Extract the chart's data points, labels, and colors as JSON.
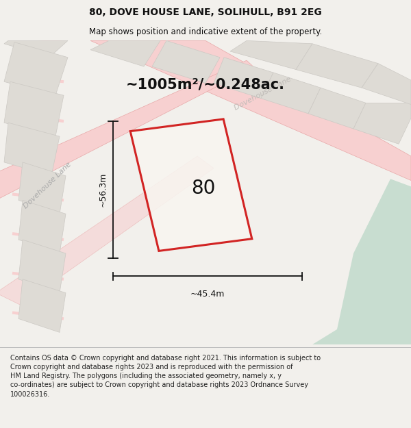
{
  "title": "80, DOVE HOUSE LANE, SOLIHULL, B91 2EG",
  "subtitle": "Map shows position and indicative extent of the property.",
  "footer": "Contains OS data © Crown copyright and database right 2021. This information is subject to\nCrown copyright and database rights 2023 and is reproduced with the permission of\nHM Land Registry. The polygons (including the associated geometry, namely x, y\nco-ordinates) are subject to Crown copyright and database rights 2023 Ordnance Survey\n100026316.",
  "area_label": "~1005m²/~0.248ac.",
  "width_label": "~45.4m",
  "height_label": "~56.3m",
  "plot_number": "80",
  "bg_color": "#f2f0ec",
  "map_bg": "#eeebe6",
  "road_color": "#f7d0d0",
  "road_outline": "#e8a8a8",
  "block_color": "#dedbd5",
  "block_outline": "#ccc9c4",
  "green_area_color": "#c8ddd0",
  "plot_outline_color": "#cc0000",
  "plot_fill": "#f8f5f0",
  "dim_color": "#111111",
  "label_color": "#111111",
  "footer_bg": "#ffffff",
  "title_fontsize": 10,
  "subtitle_fontsize": 8.5,
  "footer_fontsize": 7,
  "area_fontsize": 15,
  "dim_fontsize": 9,
  "plot_num_fontsize": 20,
  "figsize": [
    6.0,
    6.25
  ],
  "dpi": 100
}
